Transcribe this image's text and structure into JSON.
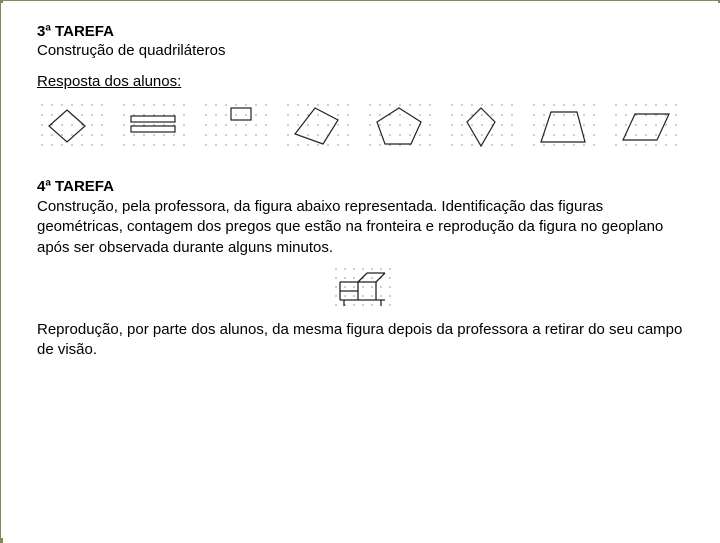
{
  "task3": {
    "title": "3ª TAREFA",
    "desc": "Construção de quadriláteros",
    "resp": "Resposta dos alunos:"
  },
  "task4": {
    "title": "4ª TAREFA",
    "p1": "Construção, pela professora, da figura abaixo representada. Identificação das figuras geométricas, contagem dos pregos que estão na fronteira e reprodução da figura no geoplano após ser observada durante alguns minutos.",
    "p2": "Reprodução, por parte dos alunos, da mesma figura depois da professora a retirar do seu campo de visão."
  },
  "dotgrid": {
    "rows": 5,
    "cols": 7,
    "spacing": 10,
    "dot_r": 0.6,
    "dot_color": "#555555"
  },
  "stroke": {
    "color": "#222222",
    "width": 1.2
  },
  "figs": [
    {
      "name": "fig-diamond",
      "poly": [
        [
          30,
          10
        ],
        [
          48,
          26
        ],
        [
          30,
          42
        ],
        [
          12,
          26
        ]
      ]
    },
    {
      "name": "fig-2rects",
      "rects": [
        [
          12,
          16,
          56,
          22
        ],
        [
          12,
          26,
          56,
          32
        ]
      ]
    },
    {
      "name": "fig-smallrect",
      "rects": [
        [
          30,
          8,
          50,
          20
        ]
      ]
    },
    {
      "name": "fig-diamond2",
      "poly": [
        [
          32,
          8
        ],
        [
          55,
          20
        ],
        [
          40,
          44
        ],
        [
          12,
          34
        ]
      ]
    },
    {
      "name": "fig-pentagon",
      "poly": [
        [
          34,
          8
        ],
        [
          56,
          22
        ],
        [
          46,
          44
        ],
        [
          20,
          44
        ],
        [
          12,
          22
        ]
      ]
    },
    {
      "name": "fig-kite",
      "poly": [
        [
          34,
          8
        ],
        [
          48,
          22
        ],
        [
          34,
          46
        ],
        [
          20,
          22
        ]
      ]
    },
    {
      "name": "fig-trapezoid",
      "poly": [
        [
          22,
          12
        ],
        [
          48,
          12
        ],
        [
          56,
          42
        ],
        [
          12,
          42
        ]
      ]
    },
    {
      "name": "fig-parallelo",
      "poly": [
        [
          24,
          14
        ],
        [
          58,
          14
        ],
        [
          46,
          40
        ],
        [
          12,
          40
        ]
      ]
    }
  ],
  "house": {
    "grid": {
      "rows": 5,
      "cols": 7,
      "spacing": 9,
      "dot_r": 0.6,
      "dot_color": "#555555"
    },
    "stroke": {
      "color": "#222222",
      "width": 1.3
    },
    "lines": [
      [
        9,
        36,
        54,
        36
      ],
      [
        9,
        18,
        9,
        36
      ],
      [
        27,
        18,
        27,
        36
      ],
      [
        9,
        18,
        27,
        18
      ],
      [
        27,
        18,
        45,
        18
      ],
      [
        45,
        18,
        45,
        36
      ],
      [
        45,
        18,
        54,
        9
      ],
      [
        27,
        18,
        36,
        9
      ],
      [
        36,
        9,
        54,
        9
      ],
      [
        9,
        27,
        27,
        27
      ],
      [
        13,
        36,
        13,
        42
      ],
      [
        50,
        36,
        50,
        42
      ]
    ]
  }
}
